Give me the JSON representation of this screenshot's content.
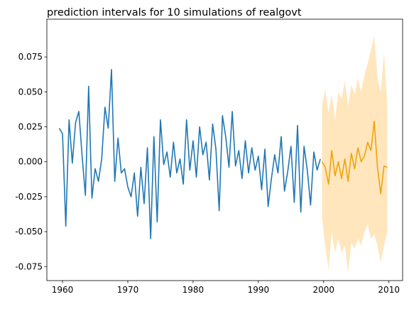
{
  "chart_data": {
    "type": "line",
    "title": "prediction intervals for 10 simulations of realgovt",
    "xlim": [
      1957.6,
      2012.1
    ],
    "xticks": [
      1960,
      1970,
      1980,
      1990,
      2000,
      2010
    ],
    "ylim": [
      -0.085,
      0.102
    ],
    "yticks": [
      {
        "value": -0.075,
        "label": "-0.075"
      },
      {
        "value": -0.05,
        "label": "-0.050"
      },
      -0.025,
      {
        "value": 0,
        "label": "0.000"
      },
      0.025,
      {
        "value": 0.05,
        "label": "0.050"
      },
      0.075
    ],
    "series": [
      {
        "color": "#1f77b4",
        "x": [
          1959.5,
          1960,
          1960.5,
          1961,
          1961.5,
          1962,
          1962.5,
          1963,
          1963.5,
          1964,
          1964.5,
          1965,
          1965.5,
          1966,
          1966.5,
          1967,
          1967.5,
          1968,
          1968.5,
          1969,
          1969.5,
          1970,
          1970.5,
          1971,
          1971.5,
          1972,
          1972.5,
          1973,
          1973.5,
          1974,
          1974.5,
          1975,
          1975.5,
          1976,
          1976.5,
          1977,
          1977.5,
          1978,
          1978.5,
          1979,
          1979.5,
          1980,
          1980.5,
          1981,
          1981.5,
          1982,
          1982.5,
          1983,
          1983.5,
          1984,
          1984.5,
          1985,
          1985.5,
          1986,
          1986.5,
          1987,
          1987.5,
          1988,
          1988.5,
          1989,
          1989.5,
          1990,
          1990.5,
          1991,
          1991.5,
          1992,
          1992.5,
          1993,
          1993.5,
          1994,
          1994.5,
          1995,
          1995.5,
          1996,
          1996.5,
          1997,
          1997.5,
          1998,
          1998.5,
          1999,
          1999.5
        ],
        "values": [
          0.024,
          0.02,
          -0.046,
          0.03,
          -0.001,
          0.028,
          0.036,
          0.004,
          -0.024,
          0.054,
          -0.026,
          -0.005,
          -0.014,
          0.002,
          0.039,
          0.024,
          0.066,
          -0.014,
          0.017,
          -0.008,
          -0.005,
          -0.018,
          -0.025,
          -0.008,
          -0.039,
          -0.004,
          -0.03,
          0.01,
          -0.055,
          0.018,
          -0.043,
          0.03,
          -0.002,
          0.007,
          -0.011,
          0.014,
          -0.008,
          0.002,
          -0.016,
          0.03,
          -0.006,
          0.015,
          -0.011,
          0.025,
          0.005,
          0.014,
          -0.013,
          0.027,
          0.009,
          -0.035,
          0.033,
          0.018,
          -0.004,
          0.036,
          -0.003,
          0.008,
          -0.012,
          0.015,
          -0.008,
          0.01,
          -0.006,
          0.004,
          -0.02,
          0.009,
          -0.032,
          -0.012,
          0.005,
          -0.008,
          0.018,
          -0.021,
          -0.007,
          0.011,
          -0.029,
          0.026,
          -0.036,
          0.011,
          -0.006,
          -0.031,
          0.007,
          -0.006,
          0.002
        ]
      },
      {
        "color": "#f0a30a",
        "x": [
          1999.75,
          2000.25,
          2000.75,
          2001.25,
          2001.75,
          2002.25,
          2002.75,
          2003.25,
          2003.75,
          2004.25,
          2004.75,
          2005.25,
          2005.75,
          2006.25,
          2006.75,
          2007.25,
          2007.75,
          2008.25,
          2008.75,
          2009.25,
          2009.75
        ],
        "values": [
          0.0,
          -0.004,
          -0.016,
          0.008,
          -0.01,
          0.0,
          -0.012,
          0.002,
          -0.014,
          0.006,
          -0.005,
          0.01,
          0.0,
          0.004,
          0.014,
          0.008,
          0.029,
          -0.004,
          -0.023,
          -0.003,
          -0.004
        ],
        "band_color": "#ffe0ad",
        "lower": [
          -0.04,
          -0.06,
          -0.077,
          -0.05,
          -0.065,
          -0.055,
          -0.065,
          -0.06,
          -0.079,
          -0.058,
          -0.062,
          -0.055,
          -0.06,
          -0.05,
          -0.045,
          -0.055,
          -0.052,
          -0.06,
          -0.072,
          -0.06,
          -0.05
        ],
        "upper": [
          0.04,
          0.052,
          0.035,
          0.048,
          0.03,
          0.05,
          0.045,
          0.058,
          0.04,
          0.055,
          0.048,
          0.06,
          0.05,
          0.062,
          0.07,
          0.08,
          0.09,
          0.06,
          0.05,
          0.078,
          0.04
        ]
      }
    ]
  }
}
